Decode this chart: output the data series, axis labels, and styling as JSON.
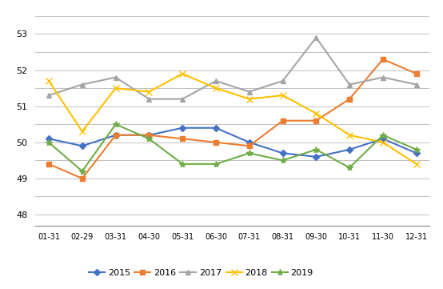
{
  "x_labels": [
    "01-31",
    "02-29",
    "03-31",
    "04-30",
    "05-31",
    "06-30",
    "07-31",
    "08-31",
    "09-30",
    "10-31",
    "11-30",
    "12-31"
  ],
  "series": {
    "2015": [
      50.1,
      49.9,
      50.2,
      50.2,
      50.4,
      50.4,
      50.0,
      49.7,
      49.6,
      49.8,
      50.1,
      49.7
    ],
    "2016": [
      49.4,
      49.0,
      50.2,
      50.2,
      50.1,
      50.0,
      49.9,
      50.6,
      50.6,
      51.2,
      52.3,
      51.9
    ],
    "2017": [
      51.3,
      51.6,
      51.8,
      51.2,
      51.2,
      51.7,
      51.4,
      51.7,
      52.9,
      51.6,
      51.8,
      51.6
    ],
    "2018": [
      51.7,
      50.3,
      51.5,
      51.4,
      51.9,
      51.5,
      51.2,
      51.3,
      50.8,
      50.2,
      50.0,
      49.4
    ],
    "2019": [
      50.0,
      49.2,
      50.5,
      50.1,
      49.4,
      49.4,
      49.7,
      49.5,
      49.8,
      49.3,
      50.2,
      49.8
    ]
  },
  "colors": {
    "2015": "#4472C4",
    "2016": "#ED7D31",
    "2017": "#A5A5A5",
    "2018": "#FFC000",
    "2019": "#70AD47"
  },
  "markers": {
    "2015": "D",
    "2016": "s",
    "2017": "^",
    "2018": "x",
    "2019": "*"
  },
  "marker_sizes": {
    "2015": 4,
    "2016": 4,
    "2017": 5,
    "2018": 6,
    "2019": 6
  },
  "ytick_positions": [
    48,
    48.5,
    49,
    49.5,
    50,
    50.5,
    51,
    51.5,
    52,
    52.5,
    53,
    53.5
  ],
  "ytick_labels": [
    "48",
    "",
    "49",
    "",
    "50",
    "",
    "51",
    "",
    "52",
    "",
    "53",
    ""
  ],
  "ylim": [
    47.7,
    53.7
  ],
  "background_color": "#ffffff",
  "grid_color": "#c0c0c0",
  "linewidth": 1.5
}
